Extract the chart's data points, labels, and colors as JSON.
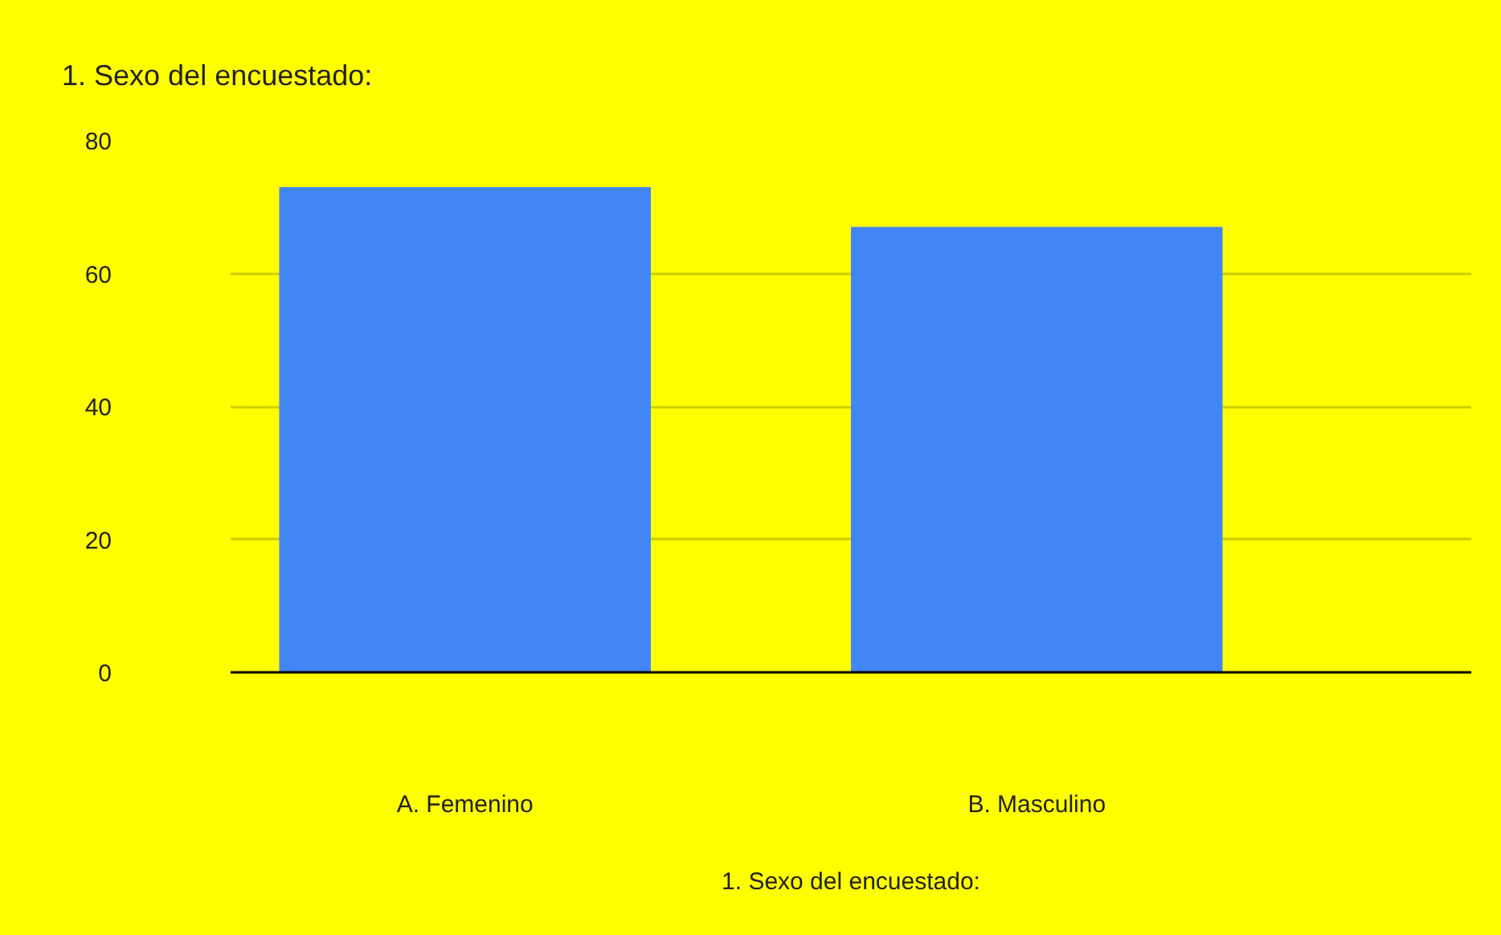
{
  "chart_data": {
    "type": "bar",
    "title": "1. Sexo del encuestado:",
    "xlabel": "1. Sexo del encuestado:",
    "categories": [
      "A. Femenino",
      "B. Masculino"
    ],
    "values": [
      73,
      67
    ],
    "color": "#4285f4",
    "ylim": [
      0,
      80
    ],
    "yticks": [
      0,
      20,
      40,
      60,
      80
    ],
    "grid": "y"
  }
}
